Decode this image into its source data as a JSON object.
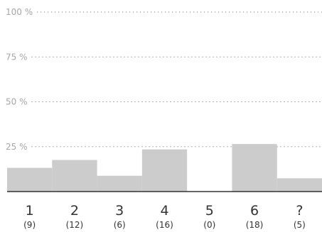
{
  "chart_data": {
    "type": "bar",
    "categories": [
      "1",
      "2",
      "3",
      "4",
      "5",
      "6",
      "?"
    ],
    "counts": [
      "(9)",
      "(12)",
      "(6)",
      "(16)",
      "(0)",
      "(18)",
      "(5)"
    ],
    "values": [
      13.2,
      17.6,
      8.8,
      23.5,
      0,
      26.5,
      7.4
    ],
    "ylim": [
      0,
      100
    ],
    "yticks": [
      {
        "value": 25,
        "label": "25 %"
      },
      {
        "value": 50,
        "label": "50 %"
      },
      {
        "value": 75,
        "label": "75 %"
      },
      {
        "value": 100,
        "label": "100 %"
      }
    ],
    "grid": true,
    "bar_color": "#cccccc",
    "axis_color": "#333333"
  }
}
